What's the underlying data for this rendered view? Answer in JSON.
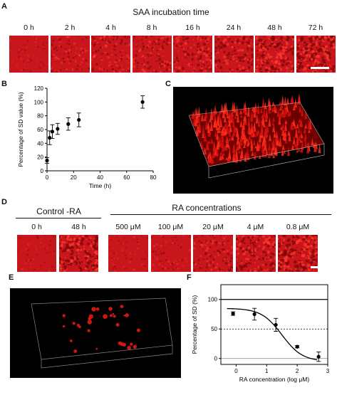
{
  "panels": {
    "a": {
      "letter": "A",
      "title": "SAA incubation time",
      "tiles": [
        {
          "label": "0 h",
          "intensity": 0.1
        },
        {
          "label": "2 h",
          "intensity": 0.3
        },
        {
          "label": "4 h",
          "intensity": 0.4
        },
        {
          "label": "8 h",
          "intensity": 0.45
        },
        {
          "label": "16 h",
          "intensity": 0.5
        },
        {
          "label": "24 h",
          "intensity": 0.55
        },
        {
          "label": "48 h",
          "intensity": 0.7
        },
        {
          "label": "72 h",
          "intensity": 0.8
        }
      ]
    },
    "b": {
      "letter": "B"
    },
    "c": {
      "letter": "C"
    },
    "d": {
      "letter": "D",
      "control_title": "Control -RA",
      "ra_title": "RA concentrations",
      "control_tiles": [
        {
          "label": "0 h",
          "intensity": 0.1
        },
        {
          "label": "48 h",
          "intensity": 0.75
        }
      ],
      "ra_tiles": [
        {
          "label": "500 μM",
          "intensity": 0.12
        },
        {
          "label": "100 μM",
          "intensity": 0.2
        },
        {
          "label": "20 μM",
          "intensity": 0.4
        },
        {
          "label": "4 μM",
          "intensity": 0.6
        },
        {
          "label": "0.8 μM",
          "intensity": 0.75
        }
      ]
    },
    "e": {
      "letter": "E"
    },
    "f": {
      "letter": "F"
    }
  },
  "colors": {
    "tile_red": "#c8161c",
    "tile_dark": "#7a0508",
    "tile_bright": "#ff3a30"
  },
  "chart_data": [
    {
      "panel": "B",
      "type": "scatter",
      "xlabel": "Time (h)",
      "ylabel": "Percentage of SD value (%)",
      "xlim": [
        0,
        80
      ],
      "ylim": [
        0,
        120
      ],
      "xticks": [
        0,
        20,
        40,
        60,
        80
      ],
      "yticks": [
        0,
        20,
        40,
        60,
        80,
        100,
        120
      ],
      "points": [
        {
          "x": 0,
          "y": 15,
          "err": 4
        },
        {
          "x": 2,
          "y": 48,
          "err": 10
        },
        {
          "x": 4,
          "y": 57,
          "err": 10
        },
        {
          "x": 8,
          "y": 61,
          "err": 8
        },
        {
          "x": 16,
          "y": 68,
          "err": 9
        },
        {
          "x": 24,
          "y": 74,
          "err": 10
        },
        {
          "x": 72,
          "y": 100,
          "err": 9
        }
      ]
    },
    {
      "panel": "F",
      "type": "scatter",
      "xlabel": "RA concentration (log μM)",
      "ylabel": "Percentage of SD (%)",
      "xlim": [
        -0.5,
        3
      ],
      "ylim": [
        -10,
        125
      ],
      "xticks": [
        0,
        1,
        2,
        3
      ],
      "yticks": [
        0,
        50,
        100
      ],
      "reference_lines": [
        {
          "y": 100,
          "style": "solid"
        },
        {
          "y": 50,
          "style": "dotted"
        },
        {
          "y": 0,
          "style": "solid-gray"
        }
      ],
      "points": [
        {
          "x": -0.1,
          "y": 76,
          "err": 3
        },
        {
          "x": 0.6,
          "y": 75,
          "err": 10
        },
        {
          "x": 1.3,
          "y": 57,
          "err": 11
        },
        {
          "x": 2.0,
          "y": 20,
          "err": 2
        },
        {
          "x": 2.7,
          "y": 3,
          "err": 8
        }
      ],
      "fit_curve": {
        "top": 85,
        "bottom": -5,
        "log_ic50": 1.5,
        "hill": 1.3
      }
    }
  ]
}
